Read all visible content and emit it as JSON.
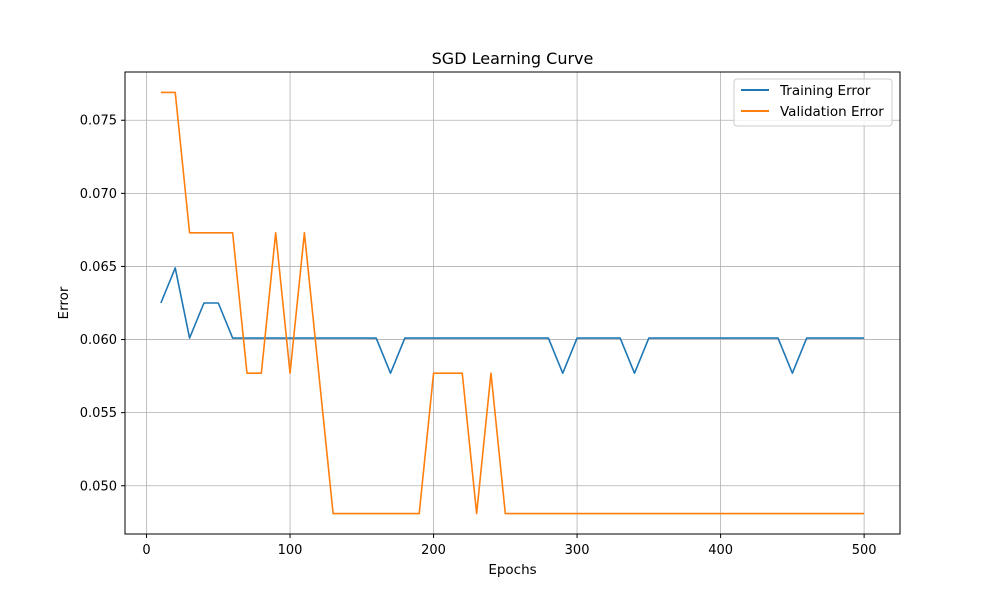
{
  "chart_data": {
    "type": "line",
    "title": "SGD Learning Curve",
    "xlabel": "Epochs",
    "ylabel": "Error",
    "xlim": [
      -15,
      525
    ],
    "ylim": [
      0.0467,
      0.0783
    ],
    "xticks": [
      0,
      100,
      200,
      300,
      400,
      500
    ],
    "yticks": [
      0.05,
      0.055,
      0.06,
      0.065,
      0.07,
      0.075
    ],
    "xtick_labels": [
      "0",
      "100",
      "200",
      "300",
      "400",
      "500"
    ],
    "ytick_labels": [
      "0.050",
      "0.055",
      "0.060",
      "0.065",
      "0.070",
      "0.075"
    ],
    "grid": true,
    "legend_position": "top-right",
    "x": [
      10,
      20,
      30,
      40,
      50,
      60,
      70,
      80,
      90,
      100,
      110,
      120,
      130,
      140,
      150,
      160,
      170,
      180,
      190,
      200,
      210,
      220,
      230,
      240,
      250,
      260,
      270,
      280,
      290,
      300,
      310,
      320,
      330,
      340,
      350,
      360,
      370,
      380,
      390,
      400,
      410,
      420,
      430,
      440,
      450,
      460,
      470,
      480,
      490,
      500
    ],
    "series": [
      {
        "name": "Training Error",
        "color": "#1f77b4",
        "values": [
          0.0625,
          0.0649,
          0.0601,
          0.0625,
          0.0625,
          0.0601,
          0.0601,
          0.0601,
          0.0601,
          0.0601,
          0.0601,
          0.0601,
          0.0601,
          0.0601,
          0.0601,
          0.0601,
          0.0577,
          0.0601,
          0.0601,
          0.0601,
          0.0601,
          0.0601,
          0.0601,
          0.0601,
          0.0601,
          0.0601,
          0.0601,
          0.0601,
          0.0577,
          0.0601,
          0.0601,
          0.0601,
          0.0601,
          0.0577,
          0.0601,
          0.0601,
          0.0601,
          0.0601,
          0.0601,
          0.0601,
          0.0601,
          0.0601,
          0.0601,
          0.0601,
          0.0577,
          0.0601,
          0.0601,
          0.0601,
          0.0601,
          0.0601
        ]
      },
      {
        "name": "Validation Error",
        "color": "#ff7f0e",
        "values": [
          0.0769,
          0.0769,
          0.0673,
          0.0673,
          0.0673,
          0.0673,
          0.0577,
          0.0577,
          0.0673,
          0.0577,
          0.0673,
          0.0577,
          0.0481,
          0.0481,
          0.0481,
          0.0481,
          0.0481,
          0.0481,
          0.0481,
          0.0577,
          0.0577,
          0.0577,
          0.0481,
          0.0577,
          0.0481,
          0.0481,
          0.0481,
          0.0481,
          0.0481,
          0.0481,
          0.0481,
          0.0481,
          0.0481,
          0.0481,
          0.0481,
          0.0481,
          0.0481,
          0.0481,
          0.0481,
          0.0481,
          0.0481,
          0.0481,
          0.0481,
          0.0481,
          0.0481,
          0.0481,
          0.0481,
          0.0481,
          0.0481,
          0.0481
        ]
      }
    ]
  }
}
